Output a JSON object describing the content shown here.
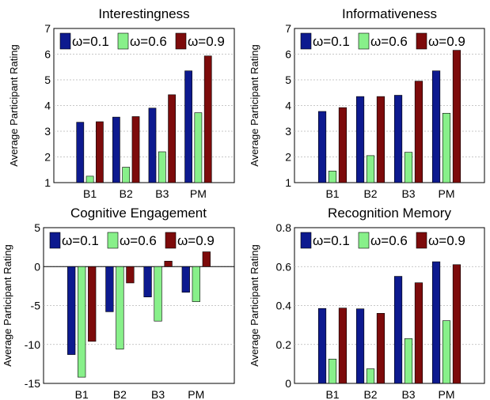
{
  "colors": {
    "series_0": "#0d1a8f",
    "series_1": "#88f08a",
    "series_2": "#7d0b0b"
  },
  "chart_data": [
    {
      "type": "bar",
      "title": "Interestingness",
      "ylabel": "Average Participant Rating",
      "categories": [
        "B1",
        "B2",
        "B3",
        "PM"
      ],
      "series": [
        {
          "name": "ω=0.1",
          "values": [
            3.35,
            3.55,
            3.9,
            5.35
          ]
        },
        {
          "name": "ω=0.6",
          "values": [
            1.25,
            1.6,
            2.2,
            3.72
          ]
        },
        {
          "name": "ω=0.9",
          "values": [
            3.37,
            3.57,
            4.42,
            5.93
          ]
        }
      ],
      "ylim": [
        1,
        7
      ],
      "yticks": [
        "1",
        "2",
        "3",
        "4",
        "5",
        "6",
        "7"
      ],
      "legend": "top",
      "grid": true
    },
    {
      "type": "bar",
      "title": "Informativeness",
      "ylabel": "Average Participant Rating",
      "categories": [
        "B1",
        "B2",
        "B3",
        "PM"
      ],
      "series": [
        {
          "name": "ω=0.1",
          "values": [
            3.77,
            4.35,
            4.4,
            5.35
          ]
        },
        {
          "name": "ω=0.6",
          "values": [
            1.45,
            2.05,
            2.18,
            3.7
          ]
        },
        {
          "name": "ω=0.9",
          "values": [
            3.92,
            4.35,
            4.95,
            6.15
          ]
        }
      ],
      "ylim": [
        1,
        7
      ],
      "yticks": [
        "1",
        "2",
        "3",
        "4",
        "5",
        "6",
        "7"
      ],
      "legend": "top",
      "grid": true
    },
    {
      "type": "bar",
      "title": "Cognitive Engagement",
      "ylabel": "Average Participant Rating",
      "categories": [
        "B1",
        "B2",
        "B3",
        "PM"
      ],
      "series": [
        {
          "name": "ω=0.1",
          "values": [
            -11.3,
            -5.8,
            -3.9,
            -3.3
          ]
        },
        {
          "name": "ω=0.6",
          "values": [
            -14.2,
            -10.6,
            -7.0,
            -4.5
          ]
        },
        {
          "name": "ω=0.9",
          "values": [
            -9.6,
            -2.1,
            0.7,
            1.9
          ]
        }
      ],
      "ylim": [
        -15,
        5
      ],
      "yticks": [
        "-15",
        "-10",
        "-5",
        "0",
        "5"
      ],
      "legend": "top",
      "grid": true,
      "zero_line": true
    },
    {
      "type": "bar",
      "title": "Recognition Memory",
      "ylabel": "Average Participant Rating",
      "categories": [
        "B1",
        "B2",
        "B3",
        "PM"
      ],
      "series": [
        {
          "name": "ω=0.1",
          "values": [
            0.385,
            0.383,
            0.55,
            0.625
          ]
        },
        {
          "name": "ω=0.6",
          "values": [
            0.125,
            0.075,
            0.23,
            0.322
          ]
        },
        {
          "name": "ω=0.9",
          "values": [
            0.387,
            0.36,
            0.517,
            0.61
          ]
        }
      ],
      "ylim": [
        0,
        0.8
      ],
      "yticks": [
        "0",
        "0.2",
        "0.4",
        "0.6",
        "0.8"
      ],
      "legend": "top",
      "grid": true
    }
  ]
}
